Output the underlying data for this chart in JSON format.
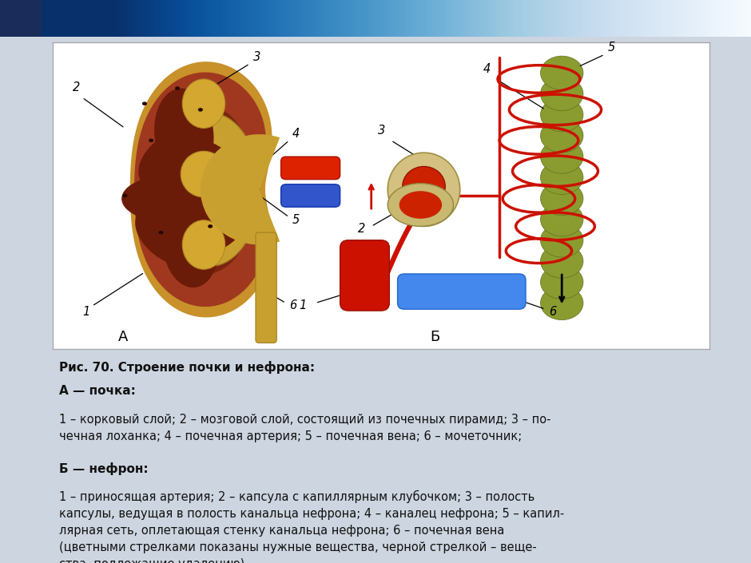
{
  "bg_color": "#cdd5e0",
  "panel_bg": "#ffffff",
  "title_bold": "Рис. 70. Строение почки и нефрона:",
  "section_a_bold": "А — почка:",
  "section_a_text": "1 – корковый слой; 2 – мозговой слой, состоящий из почечных пирамид; 3 – по-\nчечная лоханка; 4 – почечная артерия; 5 – почечная вена; 6 – мочеточник;",
  "section_b_bold": "Б — нефрон:",
  "section_b_text": "1 – приносящая артерия; 2 – капсула с капиллярным клубочком; 3 – полость\nкапсулы, ведущая в полость канальца нефрона; 4 – каналец нефрона; 5 – капил-\nлярная сеть, оплетающая стенку канальца нефрона; 6 – почечная вена\n(цветными стрелками показаны нужные вещества, черной стрелкой – веще-\nства, подлежащие удалению)",
  "label_a": "А",
  "label_b": "Б",
  "text_color": "#111111",
  "figsize": [
    9.4,
    7.05
  ],
  "dpi": 100
}
